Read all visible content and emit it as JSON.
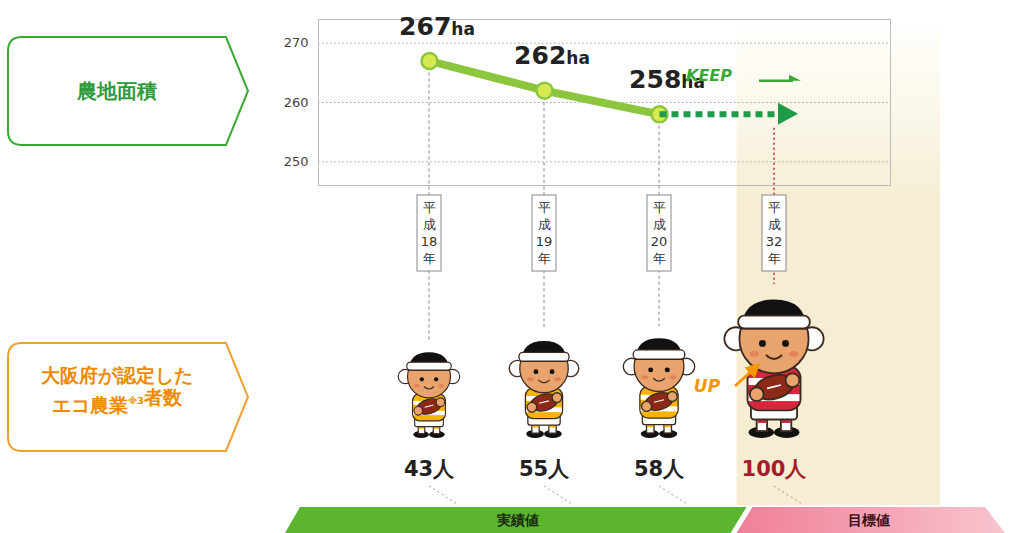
{
  "chart_data": [
    {
      "type": "line",
      "title": "農地面積",
      "categories": [
        "平成18年",
        "平成19年",
        "平成20年",
        "平成32年"
      ],
      "series": [
        {
          "color": "#8cc63f",
          "marker": "circle",
          "values": [
            267,
            262,
            258,
            null
          ],
          "value_labels": [
            "267ha",
            "262ha",
            "258ha",
            null
          ]
        },
        {
          "color": "#1f9a48",
          "line_style": "dashed",
          "values": [
            null,
            null,
            258,
            258
          ]
        }
      ],
      "ylim": [
        246,
        274
      ],
      "yticks": [
        250,
        260,
        270
      ],
      "grid": true,
      "data_labels": true,
      "annotations": [
        "KEEP"
      ]
    },
    {
      "type": "pictogram",
      "title": "大阪府が認定したエコ農業※3者数",
      "categories": [
        "平成18年",
        "平成19年",
        "平成20年",
        "平成32年"
      ],
      "series": [
        {
          "name": "実績値",
          "color": "#f5b400",
          "values": [
            43,
            55,
            58,
            null
          ],
          "value_labels": [
            "43人",
            "55人",
            "58人",
            null
          ]
        },
        {
          "name": "目標値",
          "color": "#d9263f",
          "values": [
            null,
            null,
            null,
            100
          ],
          "value_labels": [
            null,
            null,
            null,
            "100人"
          ]
        }
      ],
      "data_labels": true,
      "annotations": [
        "UP"
      ]
    }
  ]
}
